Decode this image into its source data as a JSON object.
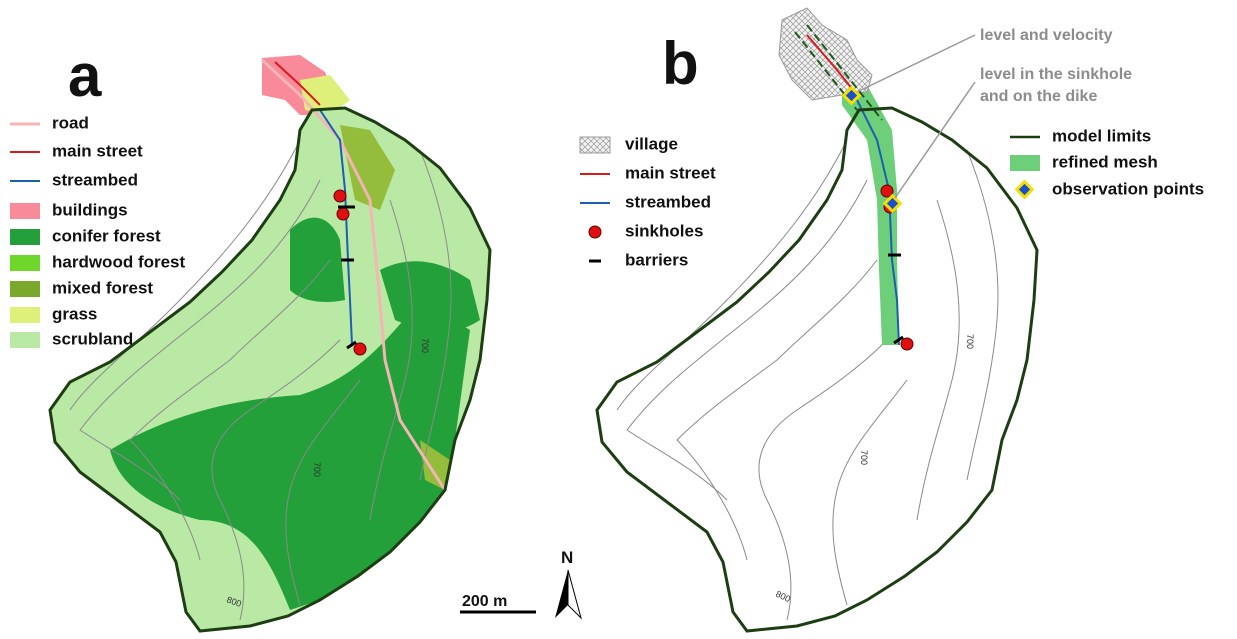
{
  "panels": [
    {
      "label": "a",
      "legend": [
        "road",
        "main street",
        "streambed",
        "buildings",
        "conifer forest",
        "hardwood forest",
        "mixed forest",
        "grass",
        "scrubland"
      ],
      "contour_labels": [
        "700",
        "700",
        "800"
      ]
    },
    {
      "label": "b",
      "legend": [
        "village",
        "main street",
        "streambed",
        "sinkholes",
        "barriers"
      ],
      "legend2": [
        "model limits",
        "refined mesh",
        "observation points"
      ],
      "annotations": [
        [
          "level and velocity"
        ],
        [
          "level in the sinkhole",
          "and on the dike"
        ]
      ],
      "contour_labels": [
        "700",
        "700",
        "800"
      ]
    }
  ],
  "scale_bar": "200 m",
  "north": "N"
}
